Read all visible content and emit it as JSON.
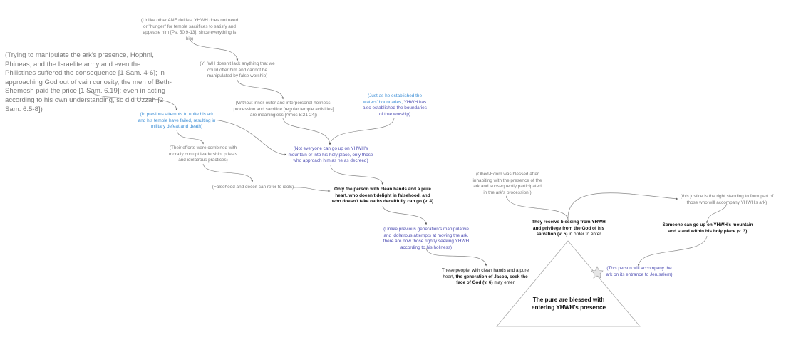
{
  "nodes": {
    "ane": "(Unlike other ANE deities, YHWH does not  need or \"hunger\" for temple sacrifices to satisfy and appease him [Ps. 50:9-13], since everything is his)",
    "manipulate": "(Trying to manipulate the ark's presence, Hophni, Phineas, and the Israelite army and even the Philistines suffered the consequence [1 Sam. 4-6]; in approaching God out of vain curiosity, the men of Beth-Shemesh paid the price [1 Sam. 6.19]; even in acting according to his own understanding, so did Uzzah [2 Sam. 6.5-8])",
    "lack": "(YHWH doesn't lack anything that we could offer him and cannot be manipulated by false worship)",
    "holiness": "(Without inner-outer and interpersonal holiness, procession and sacrifice [regular temple activities] are meaningless [Amos 5:21-24])",
    "waters_a": "(Just as he established the waters' boundaries, ",
    "waters_b": "YHWH has also established the boundaries of true worship)",
    "previous": "(In previous attempts to unite his ark and his temple have failed, resulting in military defeat and death)",
    "efforts": "(Their efforts were combined with morally corrupt leadership, priests and idolatrous practices)",
    "not_everyone": "(Not everyone can go up on YHWH's mountain or into his holy place, only those who approach him as he as decreed)",
    "falsehood": "(Falsehood and deceit can refer to idols)",
    "only_person": "Only the person with clean hands and a pure heart, who doesn't delight in falsehood, and who doesn't take oaths deceitfully can go (v. 4)",
    "unlike_prev": "(Unlike previous generation's manipulative and idolatrous attempts at moving the ark, there are now those rightly seeking YHWH according to his holiness)",
    "these_a": "These  people, with clean hands and a pure heart, ",
    "these_b": "the generation of Jacob, seek the face of God (v. 6)",
    "these_c": " may enter",
    "obed": "(Obed-Edom was blessed after inhabiting with the presence of the ark and subsequently participated in the ark's procession.)",
    "receive_a": "They receive blessing from YHWH and privilege from the God of his salvation (v. 5)",
    "receive_b": " in order to enter",
    "justice": "(this justice is the right standing to form part of those who will accompany YHWH's ark)",
    "someone": "Someone can go up on YHWH's mountain and stand within his holy place (v. 3)",
    "accompany": "(This person will accompany the ark on its entrance to Jerusalem)",
    "pyramid": "The pure are blessed with entering YHWH's presence"
  },
  "colors": {
    "gray": "#7a7a7a",
    "light_blue": "#3d8fd6",
    "purple": "#4f4fb3",
    "black": "#111111",
    "connector": "#777777"
  },
  "icons": {
    "star": "star-icon"
  }
}
